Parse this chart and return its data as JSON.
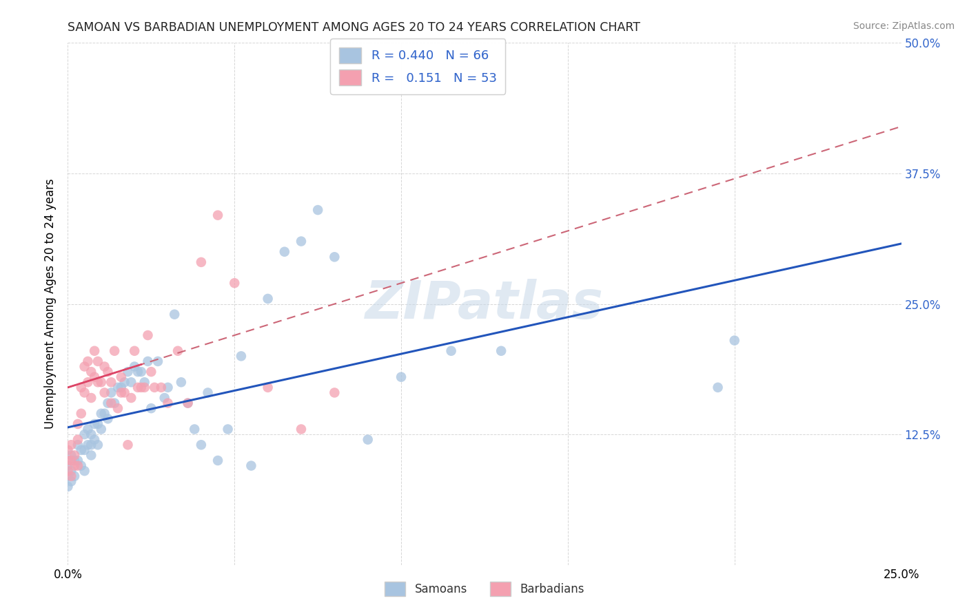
{
  "title": "SAMOAN VS BARBADIAN UNEMPLOYMENT AMONG AGES 20 TO 24 YEARS CORRELATION CHART",
  "source": "Source: ZipAtlas.com",
  "ylabel": "Unemployment Among Ages 20 to 24 years",
  "xlim": [
    0.0,
    0.25
  ],
  "ylim": [
    0.0,
    0.5
  ],
  "xticks": [
    0.0,
    0.05,
    0.1,
    0.15,
    0.2,
    0.25
  ],
  "yticks": [
    0.0,
    0.125,
    0.25,
    0.375,
    0.5
  ],
  "background_color": "#ffffff",
  "samoans_color": "#a8c4e0",
  "barbadians_color": "#f4a0b0",
  "samoans_line_color": "#2255bb",
  "barbadians_line_color": "#cc6677",
  "samoan_R": 0.44,
  "samoan_N": 66,
  "barbadian_R": 0.151,
  "barbadian_N": 53,
  "watermark": "ZIPatlas",
  "legend_label_samoan": "Samoans",
  "legend_label_barbadian": "Barbadians",
  "samoans_x": [
    0.0,
    0.0,
    0.0,
    0.001,
    0.001,
    0.001,
    0.002,
    0.002,
    0.003,
    0.003,
    0.004,
    0.004,
    0.005,
    0.005,
    0.005,
    0.006,
    0.006,
    0.007,
    0.007,
    0.007,
    0.008,
    0.008,
    0.009,
    0.009,
    0.01,
    0.01,
    0.011,
    0.012,
    0.012,
    0.013,
    0.014,
    0.015,
    0.016,
    0.017,
    0.018,
    0.019,
    0.02,
    0.021,
    0.022,
    0.023,
    0.024,
    0.025,
    0.027,
    0.029,
    0.03,
    0.032,
    0.034,
    0.036,
    0.038,
    0.04,
    0.042,
    0.045,
    0.048,
    0.052,
    0.055,
    0.06,
    0.065,
    0.07,
    0.075,
    0.08,
    0.09,
    0.1,
    0.115,
    0.13,
    0.195,
    0.2
  ],
  "samoans_y": [
    0.095,
    0.085,
    0.075,
    0.105,
    0.09,
    0.08,
    0.1,
    0.085,
    0.115,
    0.1,
    0.11,
    0.095,
    0.125,
    0.11,
    0.09,
    0.13,
    0.115,
    0.125,
    0.115,
    0.105,
    0.135,
    0.12,
    0.135,
    0.115,
    0.145,
    0.13,
    0.145,
    0.155,
    0.14,
    0.165,
    0.155,
    0.17,
    0.17,
    0.175,
    0.185,
    0.175,
    0.19,
    0.185,
    0.185,
    0.175,
    0.195,
    0.15,
    0.195,
    0.16,
    0.17,
    0.24,
    0.175,
    0.155,
    0.13,
    0.115,
    0.165,
    0.1,
    0.13,
    0.2,
    0.095,
    0.255,
    0.3,
    0.31,
    0.34,
    0.295,
    0.12,
    0.18,
    0.205,
    0.205,
    0.17,
    0.215
  ],
  "barbadians_x": [
    0.0,
    0.0,
    0.0,
    0.001,
    0.001,
    0.001,
    0.002,
    0.002,
    0.003,
    0.003,
    0.003,
    0.004,
    0.004,
    0.005,
    0.005,
    0.006,
    0.006,
    0.007,
    0.007,
    0.008,
    0.008,
    0.009,
    0.009,
    0.01,
    0.011,
    0.011,
    0.012,
    0.013,
    0.013,
    0.014,
    0.015,
    0.016,
    0.016,
    0.017,
    0.018,
    0.019,
    0.02,
    0.021,
    0.022,
    0.023,
    0.024,
    0.025,
    0.026,
    0.028,
    0.03,
    0.033,
    0.036,
    0.04,
    0.045,
    0.05,
    0.06,
    0.07,
    0.08
  ],
  "barbadians_y": [
    0.11,
    0.1,
    0.09,
    0.115,
    0.1,
    0.085,
    0.105,
    0.095,
    0.135,
    0.12,
    0.095,
    0.17,
    0.145,
    0.19,
    0.165,
    0.195,
    0.175,
    0.185,
    0.16,
    0.205,
    0.18,
    0.195,
    0.175,
    0.175,
    0.19,
    0.165,
    0.185,
    0.175,
    0.155,
    0.205,
    0.15,
    0.18,
    0.165,
    0.165,
    0.115,
    0.16,
    0.205,
    0.17,
    0.17,
    0.17,
    0.22,
    0.185,
    0.17,
    0.17,
    0.155,
    0.205,
    0.155,
    0.29,
    0.335,
    0.27,
    0.17,
    0.13,
    0.165
  ]
}
